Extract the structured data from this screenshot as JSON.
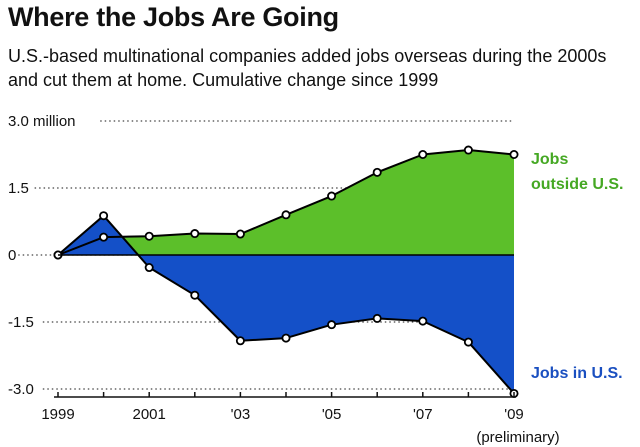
{
  "title": "Where the Jobs Are Going",
  "subtitle": "U.S.-based multinational companies added jobs overseas during the 2000s and cut them at home. Cumulative change since 1999",
  "colors": {
    "outside_fill": "#5cbf2a",
    "inside_fill": "#1450c8",
    "line": "#000000",
    "outside_label": "#45a823",
    "inside_label": "#1a4fc0",
    "grid": "#444444"
  },
  "chart_data": {
    "type": "area",
    "x": [
      1999,
      2000,
      2001,
      2002,
      2003,
      2004,
      2005,
      2006,
      2007,
      2008,
      2009
    ],
    "x_tick_labels": [
      {
        "x": 1999,
        "label": "1999"
      },
      {
        "x": 2001,
        "label": "2001"
      },
      {
        "x": 2003,
        "label": "'03"
      },
      {
        "x": 2005,
        "label": "'05"
      },
      {
        "x": 2007,
        "label": "'07"
      },
      {
        "x": 2009,
        "label": "'09"
      }
    ],
    "x_note": "(preliminary)",
    "y_ticks": [
      {
        "value": 3.0,
        "label": "3.0 million"
      },
      {
        "value": 1.5,
        "label": "1.5"
      },
      {
        "value": 0,
        "label": "0"
      },
      {
        "value": -1.5,
        "label": "-1.5"
      },
      {
        "value": -3.0,
        "label": "-3.0"
      }
    ],
    "ylim": [
      -3.0,
      3.0
    ],
    "grid": "dotted horizontal",
    "series": [
      {
        "name": "Jobs outside U.S.",
        "label_lines": [
          "Jobs",
          "outside U.S."
        ],
        "values": [
          0,
          0.4,
          0.42,
          0.48,
          0.47,
          0.9,
          1.32,
          1.85,
          2.25,
          2.35,
          2.25
        ]
      },
      {
        "name": "Jobs in U.S.",
        "label_lines": [
          "Jobs in U.S."
        ],
        "values": [
          0,
          0.88,
          -0.28,
          -0.9,
          -1.92,
          -1.86,
          -1.56,
          -1.42,
          -1.48,
          -1.95,
          -3.1
        ]
      }
    ]
  }
}
